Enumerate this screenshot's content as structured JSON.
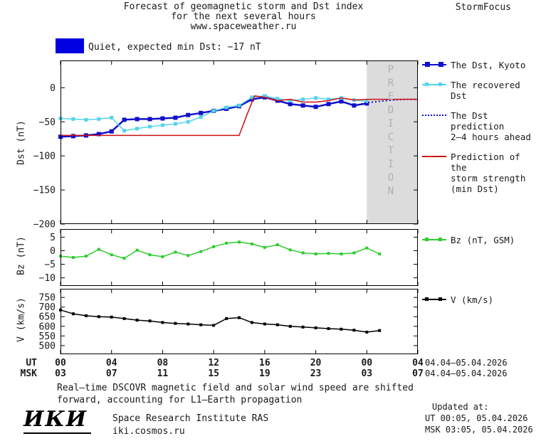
{
  "header": {
    "title_line1": "Forecast of geomagnetic storm and Dst index",
    "title_line2": "for the next several hours",
    "title_line3": "www.spaceweather.ru",
    "brand": "StormFocus"
  },
  "status": {
    "label": "Quiet, expected min Dst: −17 nT",
    "swatch_color": "#0000e0"
  },
  "prediction": {
    "label": "PREDICTION"
  },
  "legend": {
    "dst_kyoto": "The Dst, Kyoto",
    "recovered": "The recovered Dst",
    "prediction_line1": "The Dst prediction",
    "prediction_line2": "2–4 hours ahead",
    "storm_line1": "Prediction of the",
    "storm_line2": "storm strength",
    "storm_line3": "(min Dst)",
    "bz": "Bz (nT, GSM)",
    "v": "V (km/s)"
  },
  "axes": {
    "ut_label": "UT",
    "msk_label": "MSK",
    "tick_hours": [
      0,
      4,
      8,
      12,
      16,
      20,
      24,
      28
    ],
    "ut_ticks": [
      "00",
      "04",
      "08",
      "12",
      "16",
      "20",
      "00",
      "04"
    ],
    "msk_ticks": [
      "03",
      "07",
      "11",
      "15",
      "19",
      "23",
      "03",
      "07"
    ],
    "ut_date": "04.04–05.04.2026",
    "msk_date": "04.04–05.04.2026"
  },
  "footer": {
    "note_line1": "Real–time DSCOVR magnetic field and solar wind speed are shifted",
    "note_line2": "forward, accounting for L1–Earth propagation",
    "logo": "ИКИ",
    "institute": "Space Research Institute RAS",
    "site": "iki.cosmos.ru",
    "updated_label": "Updated at:",
    "updated_ut": "UT  00:05, 05.04.2026",
    "updated_msk": "MSK 03:05, 05.04.2026"
  },
  "chart_data": [
    {
      "type": "line",
      "title": "Dst index and forecast for the next several hours",
      "ylabel": "Dst (nT)",
      "xlabel": "UT hours (04.04–05.04.2026)",
      "xlim": [
        0,
        28
      ],
      "ylim": [
        -200,
        40
      ],
      "yticks": [
        0,
        -50,
        -100,
        -150,
        -200
      ],
      "grid": false,
      "legend_position": "right",
      "prediction_band": {
        "start": 24,
        "end": 28,
        "color": "#dcdcdc"
      },
      "series": [
        {
          "name": "The Dst, Kyoto",
          "color": "#1010cc",
          "width": 2.5,
          "marker": "square",
          "marker_size": 6,
          "x": [
            0,
            1,
            2,
            3,
            4,
            5,
            6,
            7,
            8,
            9,
            10,
            11,
            12,
            13,
            14,
            15,
            16,
            17,
            18,
            19,
            20,
            21,
            22,
            23,
            24
          ],
          "y": [
            -72,
            -71,
            -70,
            -68,
            -64,
            -47,
            -46,
            -46,
            -45,
            -44,
            -40,
            -37,
            -34,
            -31,
            -27,
            -17,
            -14,
            -19,
            -24,
            -26,
            -28,
            -24,
            -20,
            -26,
            -23
          ]
        },
        {
          "name": "The recovered Dst",
          "color": "#55d4e8",
          "width": 1.5,
          "marker": "square",
          "marker_size": 5,
          "x": [
            0,
            1,
            2,
            3,
            4,
            5,
            6,
            7,
            8,
            9,
            10,
            11,
            12,
            13,
            14,
            15,
            16,
            17,
            18,
            19,
            20,
            21,
            22,
            23,
            24
          ],
          "y": [
            -45,
            -46,
            -47,
            -46,
            -44,
            -63,
            -60,
            -57,
            -55,
            -53,
            -50,
            -43,
            -34,
            -29,
            -26,
            -14,
            -12,
            -16,
            -19,
            -17,
            -15,
            -17,
            -15,
            -18,
            -20
          ]
        },
        {
          "name": "The Dst prediction 2–4 hours ahead",
          "color": "#1010cc",
          "width": 2,
          "style": "dotted",
          "x": [
            23,
            24,
            25,
            26,
            27,
            28
          ],
          "y": [
            -26,
            -22,
            -20,
            -18,
            -17,
            -17
          ]
        },
        {
          "name": "Prediction of the storm strength (min Dst)",
          "color": "#cc1111",
          "width": 1.5,
          "x": [
            0,
            14,
            14.6,
            15.2,
            16,
            17,
            18,
            19,
            20,
            21,
            22,
            23,
            24,
            28
          ],
          "y": [
            -70,
            -70,
            -40,
            -12,
            -14,
            -19,
            -17,
            -21,
            -21,
            -19,
            -15,
            -18,
            -17,
            -17
          ]
        }
      ]
    },
    {
      "type": "line",
      "title": "Bz component of interplanetary magnetic field",
      "ylabel": "Bz (nT)",
      "xlim": [
        0,
        28
      ],
      "ylim": [
        -13,
        8
      ],
      "yticks": [
        5,
        0,
        -5,
        -10
      ],
      "grid": false,
      "series": [
        {
          "name": "Bz (nT, GSM)",
          "color": "#2ecc2e",
          "width": 1.5,
          "marker": "square",
          "marker_size": 4,
          "x": [
            0,
            1,
            2,
            3,
            4,
            5,
            6,
            7,
            8,
            9,
            10,
            11,
            12,
            13,
            14,
            15,
            16,
            17,
            18,
            19,
            20,
            21,
            22,
            23,
            24,
            25
          ],
          "y": [
            -2,
            -2.5,
            -2,
            0.5,
            -1.5,
            -2.8,
            0.2,
            -1.5,
            -2.2,
            -0.5,
            -1.8,
            -0.3,
            1.5,
            2.8,
            3.2,
            2.5,
            1.2,
            2.2,
            0.3,
            -0.8,
            -1.2,
            -1,
            -1.2,
            -0.8,
            1,
            -1.2
          ]
        }
      ]
    },
    {
      "type": "line",
      "title": "Solar wind speed",
      "ylabel": "V (km/s)",
      "xlim": [
        0,
        28
      ],
      "ylim": [
        455,
        795
      ],
      "yticks": [
        750,
        700,
        650,
        600,
        550,
        500
      ],
      "grid": false,
      "series": [
        {
          "name": "V (km/s)",
          "color": "#000000",
          "width": 1.5,
          "marker": "square",
          "marker_size": 4,
          "x": [
            0,
            1,
            2,
            3,
            4,
            5,
            6,
            7,
            8,
            9,
            10,
            11,
            12,
            13,
            14,
            15,
            16,
            17,
            18,
            19,
            20,
            21,
            22,
            23,
            24,
            25
          ],
          "y": [
            685,
            665,
            655,
            650,
            648,
            640,
            632,
            628,
            620,
            615,
            612,
            608,
            605,
            640,
            645,
            620,
            612,
            608,
            600,
            596,
            592,
            588,
            585,
            580,
            570,
            578
          ]
        }
      ]
    }
  ]
}
